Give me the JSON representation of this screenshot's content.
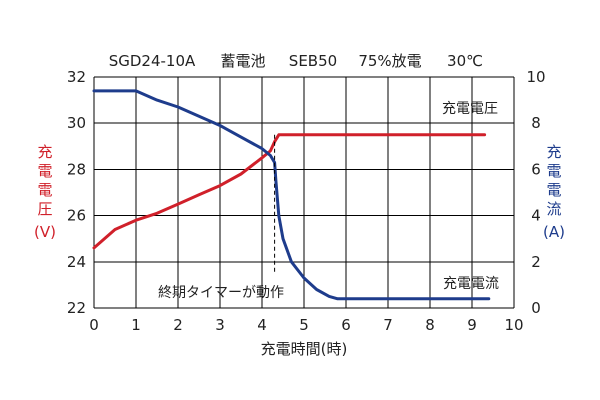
{
  "chart_data": {
    "type": "line",
    "header_items": [
      "SGD24-10A",
      "蓄電池",
      "SEB50",
      "75%放電",
      "30℃"
    ],
    "xlabel": "充電時間(時)",
    "xlim": [
      0,
      10
    ],
    "x_ticks": [
      "0",
      "1",
      "2",
      "3",
      "4",
      "5",
      "6",
      "7",
      "8",
      "9",
      "10"
    ],
    "y_left": {
      "label_chars": [
        "充",
        "電",
        "電",
        "圧"
      ],
      "unit": "(V)",
      "ylim": [
        22,
        32
      ],
      "ticks": [
        "22",
        "24",
        "26",
        "28",
        "30",
        "32"
      ]
    },
    "y_right": {
      "label_chars": [
        "充",
        "電",
        "電",
        "流"
      ],
      "unit": "(A)",
      "ylim": [
        0,
        10
      ],
      "ticks": [
        "0",
        "2",
        "4",
        "6",
        "8",
        "10"
      ]
    },
    "grid": true,
    "series": [
      {
        "name": "充電電圧",
        "axis": "left",
        "color": "#d0202a",
        "points": [
          [
            0,
            24.6
          ],
          [
            0.5,
            25.4
          ],
          [
            1,
            25.8
          ],
          [
            1.5,
            26.1
          ],
          [
            2,
            26.5
          ],
          [
            2.5,
            26.9
          ],
          [
            3,
            27.3
          ],
          [
            3.5,
            27.8
          ],
          [
            4,
            28.5
          ],
          [
            4.2,
            28.8
          ],
          [
            4.3,
            29.2
          ],
          [
            4.4,
            29.5
          ],
          [
            9.3,
            29.5
          ]
        ]
      },
      {
        "name": "充電電流",
        "axis": "right",
        "color": "#1e3c8c",
        "points": [
          [
            0,
            9.4
          ],
          [
            1,
            9.4
          ],
          [
            1.5,
            9.0
          ],
          [
            2,
            8.7
          ],
          [
            2.5,
            8.3
          ],
          [
            3,
            7.9
          ],
          [
            3.5,
            7.4
          ],
          [
            4,
            6.9
          ],
          [
            4.2,
            6.6
          ],
          [
            4.3,
            6.3
          ],
          [
            4.33,
            5.5
          ],
          [
            4.4,
            4.0
          ],
          [
            4.5,
            3.0
          ],
          [
            4.7,
            2.0
          ],
          [
            5,
            1.3
          ],
          [
            5.3,
            0.8
          ],
          [
            5.6,
            0.5
          ],
          [
            5.8,
            0.4
          ],
          [
            9.4,
            0.4
          ]
        ]
      }
    ],
    "annotation": {
      "text": "終期タイマーが動作",
      "x": 4.3
    }
  }
}
